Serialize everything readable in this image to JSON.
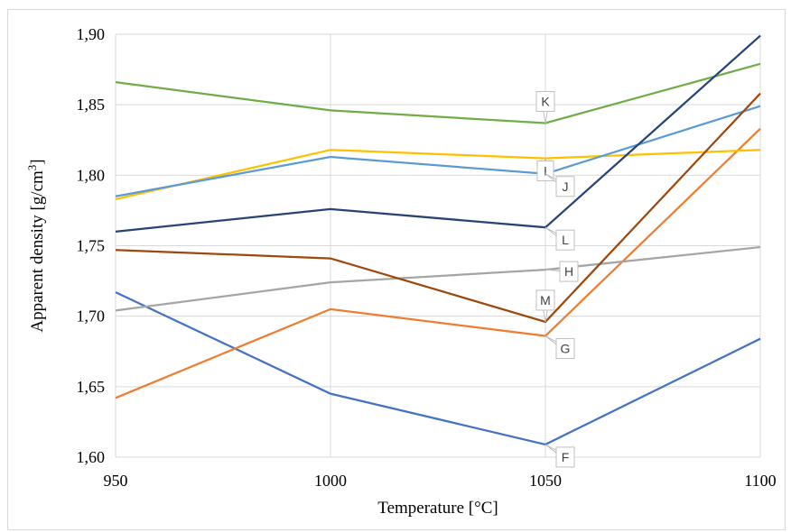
{
  "chart_data": {
    "type": "line",
    "title": "",
    "xlabel": "Temperature [°C]",
    "ylabel": "Apparent density [g/cm³]",
    "ylabel_main": "Apparent density [g/cm",
    "ylabel_sup": "3",
    "ylabel_end": "]",
    "x": [
      950,
      1000,
      1050,
      1100
    ],
    "x_tick_labels": [
      "950",
      "1000",
      "1050",
      "1100"
    ],
    "xlim": [
      950,
      1100
    ],
    "ylim": [
      1.6,
      1.9
    ],
    "y_ticks": [
      1.6,
      1.65,
      1.7,
      1.75,
      1.8,
      1.85,
      1.9
    ],
    "y_tick_labels": [
      "1,60",
      "1,65",
      "1,70",
      "1,75",
      "1,80",
      "1,85",
      "1,90"
    ],
    "grid": true,
    "legend": "none",
    "series": [
      {
        "name": "F",
        "color": "#4472C4",
        "values": [
          1.717,
          1.645,
          1.609,
          1.684
        ]
      },
      {
        "name": "G",
        "color": "#ED7D31",
        "values": [
          1.642,
          1.705,
          1.686,
          1.833
        ]
      },
      {
        "name": "H",
        "color": "#A5A5A5",
        "values": [
          1.704,
          1.724,
          1.733,
          1.749
        ]
      },
      {
        "name": "I",
        "color": "#FFC000",
        "values": [
          1.783,
          1.818,
          1.812,
          1.818
        ]
      },
      {
        "name": "J",
        "color": "#5B9BD5",
        "values": [
          1.785,
          1.813,
          1.801,
          1.849
        ]
      },
      {
        "name": "K",
        "color": "#70AD47",
        "values": [
          1.866,
          1.846,
          1.837,
          1.879
        ]
      },
      {
        "name": "L",
        "color": "#264478",
        "values": [
          1.76,
          1.776,
          1.763,
          1.899
        ]
      },
      {
        "name": "M",
        "color": "#9E480E",
        "values": [
          1.747,
          1.741,
          1.696,
          1.858
        ]
      }
    ],
    "callouts": [
      {
        "series": "K",
        "text": "K",
        "at_x": 1050,
        "direction": "up"
      },
      {
        "series": "I",
        "text": "I",
        "at_x": 1050,
        "direction": "down"
      },
      {
        "series": "J",
        "text": "J",
        "at_x": 1050,
        "direction": "down-right"
      },
      {
        "series": "L",
        "text": "L",
        "at_x": 1050,
        "direction": "down-right"
      },
      {
        "series": "H",
        "text": "H",
        "at_x": 1050,
        "direction": "right"
      },
      {
        "series": "M",
        "text": "M",
        "at_x": 1050,
        "direction": "up"
      },
      {
        "series": "G",
        "text": "G",
        "at_x": 1050,
        "direction": "down-right"
      },
      {
        "series": "F",
        "text": "F",
        "at_x": 1050,
        "direction": "down-right"
      }
    ]
  }
}
